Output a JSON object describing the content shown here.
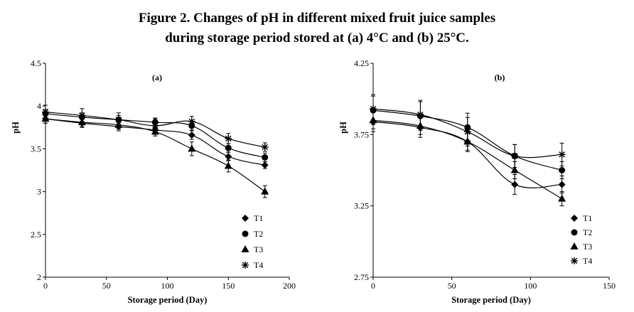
{
  "figure": {
    "title_line1": "Figure 2. Changes of pH in different mixed fruit juice samples",
    "title_line2": "during storage period stored at (a) 4°C and (b) 25°C."
  },
  "chart_data": [
    {
      "type": "line",
      "title": "(a)",
      "xlabel": "Storage period (Day)",
      "ylabel": "pH",
      "xlim": [
        0,
        200
      ],
      "ylim": [
        2,
        4.5
      ],
      "xticks": [
        0,
        50,
        100,
        150,
        200
      ],
      "yticks": [
        2,
        2.5,
        3,
        3.5,
        4,
        4.5
      ],
      "x": [
        0,
        30,
        60,
        90,
        120,
        150,
        180
      ],
      "series": [
        {
          "name": "T1",
          "marker": "diamond",
          "values": [
            3.85,
            3.8,
            3.76,
            3.72,
            3.66,
            3.41,
            3.31
          ],
          "errors": [
            0.05,
            0.05,
            0.05,
            0.05,
            0.05,
            0.05,
            0.04
          ]
        },
        {
          "name": "T2",
          "marker": "circle",
          "values": [
            3.91,
            3.87,
            3.84,
            3.81,
            3.77,
            3.51,
            3.4
          ],
          "errors": [
            0.05,
            0.05,
            0.05,
            0.05,
            0.05,
            0.05,
            0.05
          ]
        },
        {
          "name": "T3",
          "marker": "triangle",
          "values": [
            3.85,
            3.81,
            3.78,
            3.7,
            3.5,
            3.3,
            3.0
          ],
          "errors": [
            0.05,
            0.05,
            0.05,
            0.05,
            0.08,
            0.07,
            0.07
          ]
        },
        {
          "name": "T4",
          "marker": "asterisk",
          "values": [
            3.93,
            3.89,
            3.84,
            3.77,
            3.82,
            3.62,
            3.52
          ],
          "errors": [
            0.08,
            0.08,
            0.08,
            0.08,
            0.06,
            0.06,
            0.05
          ]
        }
      ],
      "legend": "bottom-right"
    },
    {
      "type": "line",
      "title": "(b)",
      "xlabel": "Storage period (Day)",
      "ylabel": "pH",
      "xlim": [
        0,
        150
      ],
      "ylim": [
        2.75,
        4.25
      ],
      "xticks": [
        0,
        50,
        100,
        150
      ],
      "yticks": [
        2.75,
        3.25,
        3.75,
        4.25
      ],
      "x": [
        0,
        30,
        60,
        90,
        120
      ],
      "series": [
        {
          "name": "T1",
          "marker": "diamond",
          "values": [
            3.84,
            3.8,
            3.7,
            3.4,
            3.4
          ],
          "errors": [
            0.07,
            0.07,
            0.07,
            0.07,
            0.06
          ]
        },
        {
          "name": "T2",
          "marker": "circle",
          "values": [
            3.92,
            3.88,
            3.8,
            3.6,
            3.5
          ],
          "errors": [
            0.1,
            0.1,
            0.1,
            0.08,
            0.06
          ]
        },
        {
          "name": "T3",
          "marker": "triangle",
          "values": [
            3.85,
            3.81,
            3.7,
            3.5,
            3.3
          ],
          "errors": [
            0.06,
            0.06,
            0.06,
            0.06,
            0.05
          ]
        },
        {
          "name": "T4",
          "marker": "asterisk",
          "values": [
            3.93,
            3.89,
            3.77,
            3.6,
            3.61
          ],
          "errors": [
            0.1,
            0.1,
            0.1,
            0.08,
            0.08
          ]
        }
      ],
      "legend": "bottom-right"
    }
  ]
}
